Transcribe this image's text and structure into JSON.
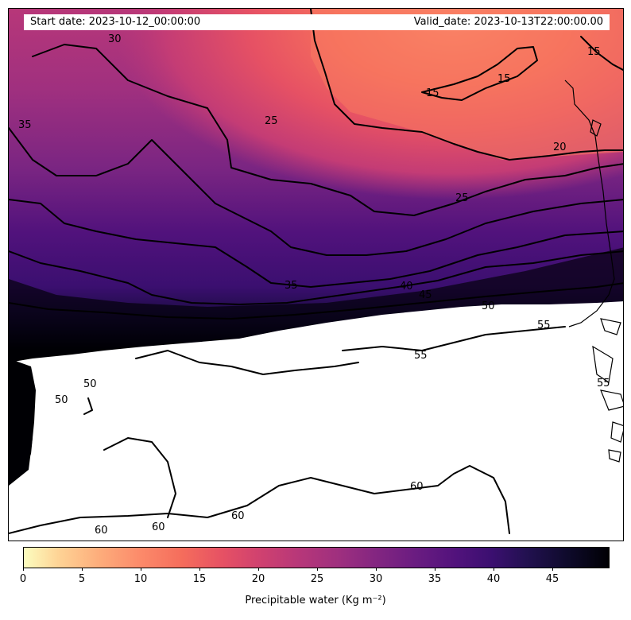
{
  "header": {
    "start_date": "Start date: 2023-10-12_00:00:00",
    "valid_date": "Valid_date: 2023-10-13T22:00:00.00"
  },
  "colorbar": {
    "label": "Precipitable water (Kg m⁻²)",
    "ticks": [
      "0",
      "5",
      "10",
      "15",
      "20",
      "25",
      "30",
      "35",
      "40",
      "45"
    ],
    "min": 0,
    "max": 50,
    "colormap": "magma_r"
  },
  "contours": {
    "labels": [
      "15",
      "15",
      "15",
      "20",
      "25",
      "25",
      "30",
      "35",
      "35",
      "40",
      "45",
      "50",
      "50",
      "55",
      "55",
      "55",
      "60",
      "60",
      "60",
      "60",
      "50"
    ],
    "levels": [
      15,
      20,
      25,
      30,
      35,
      40,
      45,
      50,
      55,
      60
    ]
  },
  "colors": {
    "low": "#fcfdbf",
    "high": "#000004",
    "missing": "#ffffff"
  }
}
